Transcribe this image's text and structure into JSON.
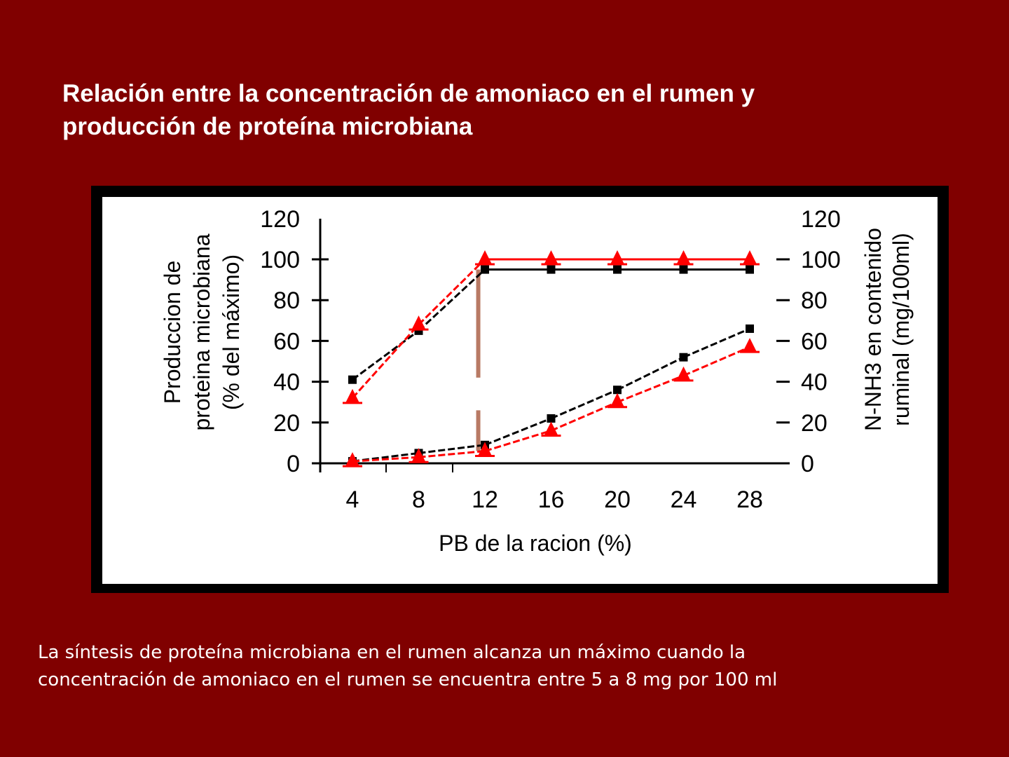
{
  "slide": {
    "title_line1": "Relación entre la concentración de amoniaco en el rumen y",
    "title_line2": "producción de proteína microbiana",
    "caption_line1": "La síntesis de proteína microbiana en el rumen alcanza un máximo cuando la",
    "caption_line2": "concentración de amoniaco en el rumen se encuentra entre 5 a 8 mg por 100 ml",
    "colors": {
      "background": "#800000",
      "frame": "#000000",
      "plot_bg": "#ffffff",
      "series_black": "#000000",
      "series_red": "#ff0000",
      "marker_bar": "#b87a64"
    }
  },
  "chart_data": {
    "type": "line",
    "title": "",
    "xlabel": "PB de la racion (%)",
    "ylabel_left_line1": "Produccion de",
    "ylabel_left_line2": "proteina microbiana",
    "ylabel_left_line3": "(% del máximo)",
    "ylabel_right_line1": "N-NH3 en contenido",
    "ylabel_right_line2": "ruminal (mg/100ml)",
    "x": [
      4,
      8,
      12,
      16,
      20,
      24,
      28
    ],
    "x_tick_labels": [
      "4",
      "8",
      "12",
      "16",
      "20",
      "24",
      "28"
    ],
    "y_ticks_left": [
      "0",
      "20",
      "40",
      "60",
      "80",
      "100",
      "120"
    ],
    "y_ticks_right": [
      "0",
      "20",
      "40",
      "60",
      "80",
      "100",
      "120"
    ],
    "ylim": [
      0,
      120
    ],
    "grid": false,
    "legend": "none",
    "series": [
      {
        "name": "Produccion proteina microbiana (black, squares)",
        "axis": "left",
        "color": "#000000",
        "marker": "square",
        "values": [
          41,
          65,
          95,
          95,
          95,
          95,
          95
        ]
      },
      {
        "name": "Produccion proteina microbiana (red, triangles)",
        "axis": "left",
        "color": "#ff0000",
        "marker": "triangle",
        "values": [
          32,
          68,
          100,
          100,
          100,
          100,
          100
        ]
      },
      {
        "name": "N-NH3 ruminal (black, squares)",
        "axis": "right",
        "color": "#000000",
        "marker": "square",
        "values": [
          1,
          5,
          9,
          22,
          36,
          52,
          66
        ]
      },
      {
        "name": "N-NH3 ruminal (red, triangles)",
        "axis": "right",
        "color": "#ff0000",
        "marker": "triangle",
        "values": [
          1,
          3,
          6,
          16,
          30,
          43,
          57
        ]
      }
    ],
    "annotations": [
      {
        "type": "vertical-dashed-bar",
        "x": 11.6,
        "color": "#b87a64",
        "segments": [
          [
            42,
            95
          ],
          [
            6,
            26
          ]
        ]
      }
    ]
  }
}
